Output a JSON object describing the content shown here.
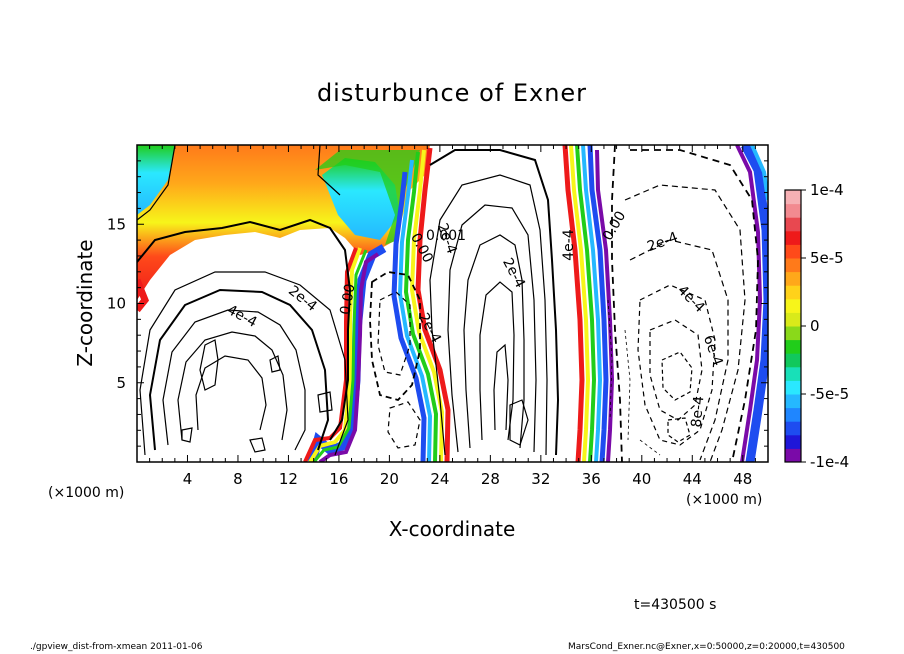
{
  "chart_data": {
    "type": "heatmap",
    "title": "disturbunce of Exner",
    "xlabel": "X-coordinate",
    "ylabel": "Z-coordinate",
    "xunit": "(×1000 m)",
    "yunit": "(×1000 m)",
    "xlim": [
      0,
      50
    ],
    "ylim": [
      0,
      20
    ],
    "xticks": [
      "4",
      "8",
      "12",
      "16",
      "20",
      "24",
      "28",
      "32",
      "36",
      "40",
      "44",
      "48"
    ],
    "yticks": [
      "5",
      "10",
      "15"
    ],
    "colorbar": {
      "range": [
        -0.0001,
        0.0001
      ],
      "ticks": [
        "1e-4",
        "5e-5",
        "0",
        "-5e-5",
        "-1e-4"
      ],
      "colors": [
        "#7a0aa8",
        "#1f16d8",
        "#1e4cf0",
        "#1f86ff",
        "#25b8ff",
        "#2ae8ff",
        "#18e0b8",
        "#11c85c",
        "#21cd1a",
        "#8ad91a",
        "#d9ea1a",
        "#f7f51a",
        "#ffd21a",
        "#ffa81a",
        "#ff7a1a",
        "#ff4a1a",
        "#ee1a1a",
        "#e84850",
        "#f28a90",
        "#f6b0b4"
      ]
    },
    "contour_labels": [
      "2e-4",
      "4e-4",
      "0.00",
      "2e-4",
      "0.00",
      "2e-4",
      "2e-4",
      "4e-4",
      "0.00",
      "2e-4",
      "4e-4",
      "6e-4",
      "8e-4",
      "0.001"
    ],
    "time_label": "t=430500 s"
  },
  "footer": {
    "left": "./gpview_dist-from-xmean  2011-01-06",
    "right": "MarsCond_Exner.nc@Exner,x=0:50000,z=0:20000,t=430500"
  }
}
